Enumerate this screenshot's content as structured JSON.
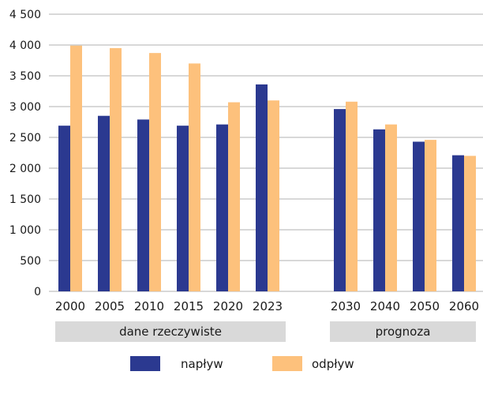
{
  "chart_data": {
    "type": "bar",
    "categories": [
      "2000",
      "2005",
      "2010",
      "2015",
      "2020",
      "2023",
      "2030",
      "2040",
      "2050",
      "2060"
    ],
    "series": [
      {
        "name": "napływ",
        "color": "#2b3990",
        "values": [
          2690,
          2850,
          2790,
          2690,
          2710,
          3360,
          2960,
          2630,
          2430,
          2210
        ]
      },
      {
        "name": "odpływ",
        "color": "#fdc17c",
        "values": [
          3990,
          3950,
          3870,
          3700,
          3070,
          3100,
          3080,
          2710,
          2460,
          2200
        ]
      }
    ],
    "yticks": [
      "0",
      "500",
      "1 000",
      "1 500",
      "2 000",
      "2 500",
      "3 000",
      "3 500",
      "4 000",
      "4 500"
    ],
    "ylim": [
      0,
      4500
    ],
    "grid": true,
    "groups": [
      {
        "label": "dane rzeczywiste",
        "categories": [
          "2000",
          "2005",
          "2010",
          "2015",
          "2020",
          "2023"
        ]
      },
      {
        "label": "prognoza",
        "categories": [
          "2030",
          "2040",
          "2050",
          "2060"
        ]
      }
    ],
    "group_band_color": "#d9d9d9",
    "legend_position": "bottom-center",
    "title": "",
    "xlabel": "",
    "ylabel": ""
  }
}
